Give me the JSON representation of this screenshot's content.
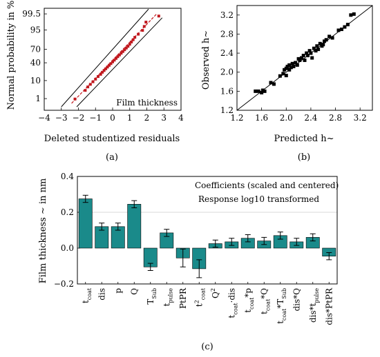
{
  "colors": {
    "teal": "#1a8a8a",
    "red": "#c0181e",
    "black": "#000000",
    "grid": "#d8d8d8"
  },
  "chart_data": [
    {
      "type": "scatter",
      "panel_label": "(a)",
      "xlabel": "Deleted studentized residuals",
      "ylabel": "Normal probability in %",
      "annotation": "Film thickness",
      "xlim": [
        -4,
        4
      ],
      "x_ticks": [
        -4,
        -3,
        -2,
        -1,
        0,
        1,
        2,
        3,
        4
      ],
      "y_ticks": [
        {
          "label": "1",
          "z": -2.326
        },
        {
          "label": "10",
          "z": -1.282
        },
        {
          "label": "40",
          "z": -0.253
        },
        {
          "label": "70",
          "z": 0.524
        },
        {
          "label": "95",
          "z": 1.645
        },
        {
          "label": "99.5",
          "z": 2.576
        }
      ],
      "ylim_z": [
        -3.0,
        2.9
      ],
      "fit_line": {
        "x": [
          -2.4,
          2.6
        ],
        "z": [
          -2.6,
          2.6
        ]
      },
      "confidence_bounds": [
        {
          "x": [
            -3.0,
            2.1
          ],
          "z": [
            -2.8,
            2.85
          ]
        },
        {
          "x": [
            -2.1,
            2.9
          ],
          "z": [
            -2.8,
            2.35
          ]
        }
      ],
      "points": {
        "x": [
          -2.2,
          -1.6,
          -1.45,
          -1.3,
          -1.15,
          -1.0,
          -0.85,
          -0.7,
          -0.6,
          -0.5,
          -0.4,
          -0.3,
          -0.2,
          -0.1,
          0.0,
          0.1,
          0.2,
          0.3,
          0.4,
          0.5,
          0.6,
          0.7,
          0.8,
          0.9,
          1.0,
          1.1,
          1.2,
          1.3,
          1.5,
          1.75,
          1.85,
          1.95,
          2.7
        ],
        "z": [
          -2.35,
          -1.85,
          -1.65,
          -1.5,
          -1.35,
          -1.2,
          -1.05,
          -0.92,
          -0.8,
          -0.7,
          -0.6,
          -0.5,
          -0.4,
          -0.3,
          -0.2,
          -0.1,
          0.0,
          0.1,
          0.2,
          0.3,
          0.4,
          0.5,
          0.6,
          0.7,
          0.82,
          0.95,
          1.08,
          1.22,
          1.4,
          1.62,
          1.85,
          2.1,
          2.45
        ]
      }
    },
    {
      "type": "scatter",
      "panel_label": "(b)",
      "xlabel": "Predicted h~",
      "ylabel": "Observed h~",
      "xlim": [
        1.2,
        3.4
      ],
      "ylim": [
        1.2,
        3.4
      ],
      "x_ticks": [
        1.2,
        1.6,
        2.0,
        2.4,
        2.8,
        3.2
      ],
      "y_ticks": [
        1.2,
        1.6,
        2.0,
        2.4,
        2.8,
        3.2
      ],
      "identity_line": [
        [
          1.2,
          1.2
        ],
        [
          3.4,
          3.4
        ]
      ],
      "points": {
        "x": [
          1.5,
          1.55,
          1.6,
          1.62,
          1.65,
          1.75,
          1.8,
          1.9,
          1.95,
          1.97,
          2.0,
          2.0,
          2.02,
          2.05,
          2.05,
          2.08,
          2.1,
          2.12,
          2.15,
          2.18,
          2.2,
          2.22,
          2.25,
          2.28,
          2.3,
          2.33,
          2.35,
          2.38,
          2.4,
          2.42,
          2.45,
          2.48,
          2.5,
          2.52,
          2.55,
          2.58,
          2.6,
          2.62,
          2.65,
          2.7,
          2.75,
          2.85,
          2.9,
          2.95,
          3.0,
          3.05,
          3.1
        ],
        "y": [
          1.6,
          1.6,
          1.57,
          1.62,
          1.6,
          1.78,
          1.75,
          1.92,
          1.97,
          2.05,
          1.93,
          2.08,
          2.12,
          2.05,
          2.15,
          2.1,
          2.18,
          2.12,
          2.2,
          2.15,
          2.28,
          2.25,
          2.3,
          2.35,
          2.25,
          2.4,
          2.35,
          2.45,
          2.4,
          2.3,
          2.5,
          2.45,
          2.55,
          2.48,
          2.6,
          2.55,
          2.58,
          2.65,
          2.68,
          2.75,
          2.72,
          2.88,
          2.9,
          2.95,
          3.0,
          3.2,
          3.22
        ]
      }
    },
    {
      "type": "bar",
      "panel_label": "(c)",
      "ylabel": "Film thickness ~ in nm",
      "ylim": [
        -0.2,
        0.4
      ],
      "y_ticks": [
        -0.2,
        0.0,
        0.2,
        0.4
      ],
      "notes": [
        "Coefficients (scaled and centered)",
        "Response log10 transformed"
      ],
      "categories": [
        {
          "base": "t",
          "sub": "coat",
          "sup": ""
        },
        {
          "base": "dis",
          "sub": "",
          "sup": ""
        },
        {
          "base": "p",
          "sub": "",
          "sup": ""
        },
        {
          "base": "Q",
          "sub": "",
          "sup": ""
        },
        {
          "base": "T",
          "sub": "Sub",
          "sup": ""
        },
        {
          "base": "t",
          "sub": "pulse",
          "sup": ""
        },
        {
          "base": "PtPR",
          "sub": "",
          "sup": ""
        },
        {
          "base": "t",
          "sub": "coat",
          "sup": "2"
        },
        {
          "base": "Q",
          "sub": "",
          "sup": "2"
        },
        {
          "base": "t",
          "sub": "coat",
          "sup": "",
          "tail": "·dis"
        },
        {
          "base": "t",
          "sub": "coat",
          "sup": "",
          "tail": "*p"
        },
        {
          "base": "t",
          "sub": "coat",
          "sup": "",
          "tail": "*Q"
        },
        {
          "base": "t",
          "sub": "coat",
          "sup": "",
          "tail": "*T",
          "tail_sub": "Sub"
        },
        {
          "base": "dis*Q",
          "sub": "",
          "sup": ""
        },
        {
          "base": "dis*t",
          "sub": "pulse",
          "sup": ""
        },
        {
          "base": "dis*PtPR",
          "sub": "",
          "sup": ""
        }
      ],
      "values": [
        0.275,
        0.12,
        0.12,
        0.245,
        -0.105,
        0.085,
        -0.055,
        -0.115,
        0.025,
        0.035,
        0.055,
        0.04,
        0.07,
        0.035,
        0.06,
        -0.045
      ],
      "errors": [
        0.02,
        0.02,
        0.02,
        0.02,
        0.02,
        0.02,
        0.05,
        0.05,
        0.02,
        0.02,
        0.02,
        0.02,
        0.02,
        0.02,
        0.02,
        0.02
      ]
    }
  ]
}
